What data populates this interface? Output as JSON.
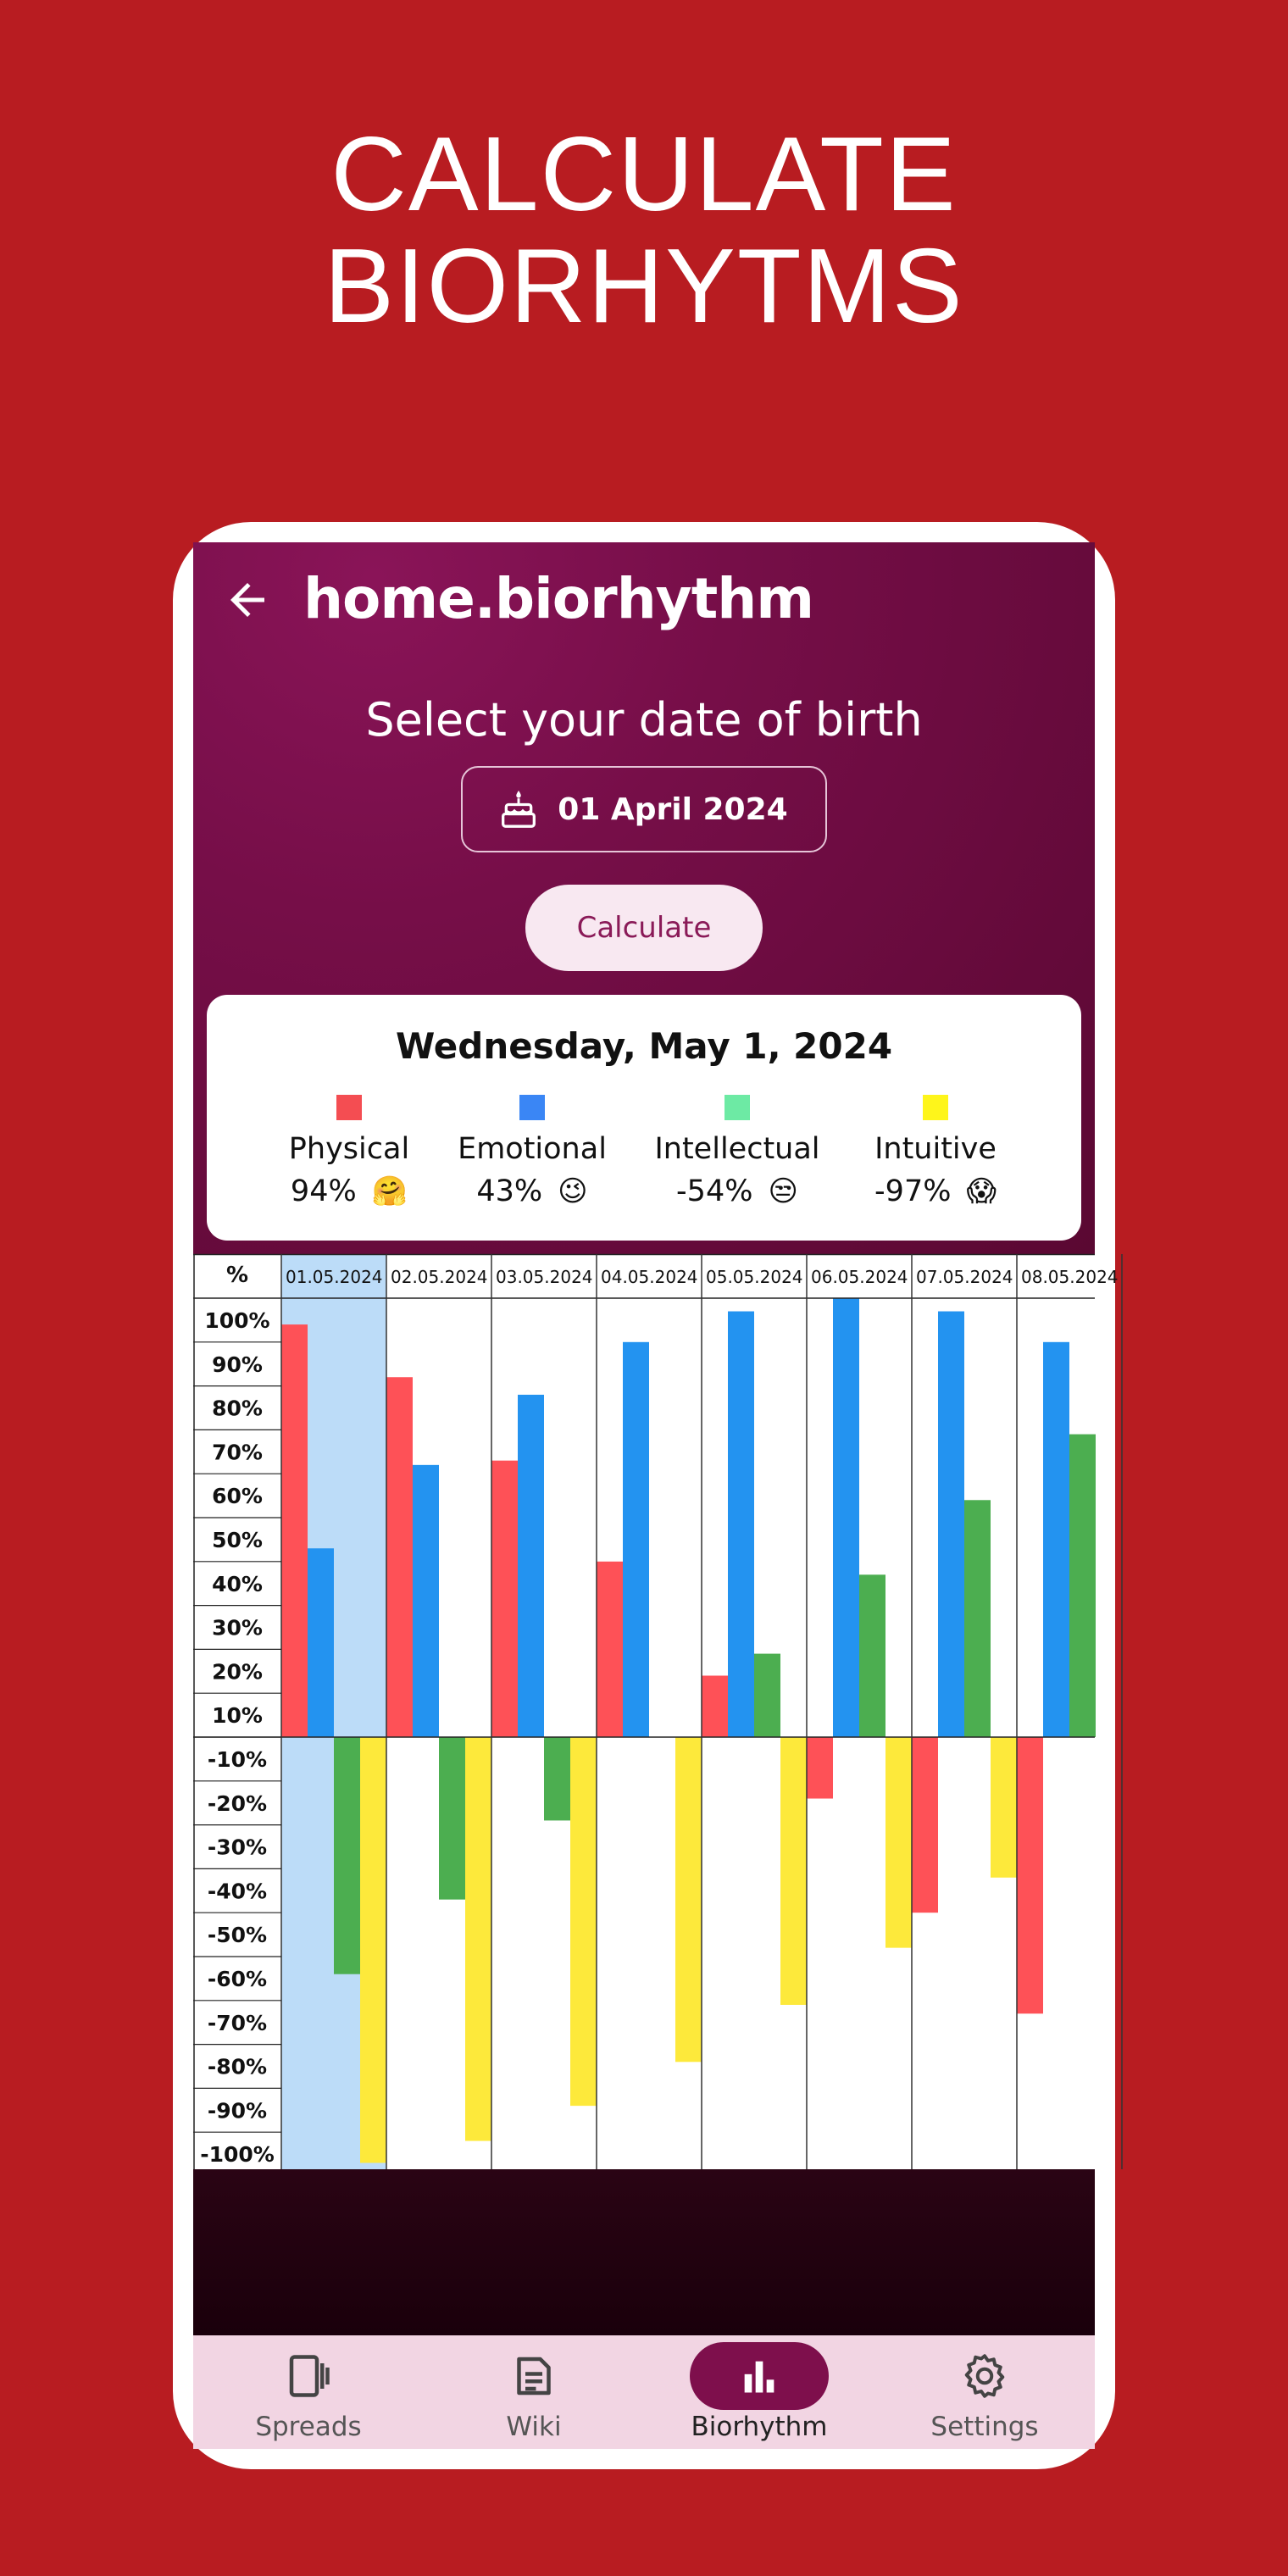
{
  "headline": {
    "line1": "CALCULATE",
    "line2": "BIORHYTMS"
  },
  "appbar": {
    "title": "home.biorhythm"
  },
  "form": {
    "label": "Select your date of birth",
    "date_value": "01 April 2024",
    "calculate_label": "Calculate"
  },
  "summary": {
    "date": "Wednesday, May 1, 2024",
    "items": [
      {
        "name": "Physical",
        "value": "94%",
        "emoji": "🤗",
        "color": "#f44d52"
      },
      {
        "name": "Emotional",
        "value": "43%",
        "emoji": "😉",
        "color": "#3a86f5"
      },
      {
        "name": "Intellectual",
        "value": "-54%",
        "emoji": "😒",
        "color": "#6deaa4"
      },
      {
        "name": "Intuitive",
        "value": "-97%",
        "emoji": "😱",
        "color": "#fef51b"
      }
    ]
  },
  "chart_data": {
    "type": "bar",
    "corner_label": "%",
    "y_ticks": [
      "100%",
      "90%",
      "80%",
      "70%",
      "60%",
      "50%",
      "40%",
      "30%",
      "20%",
      "10%",
      "-10%",
      "-20%",
      "-30%",
      "-40%",
      "-50%",
      "-60%",
      "-70%",
      "-80%",
      "-90%",
      "-100%"
    ],
    "ylim": [
      -100,
      100
    ],
    "categories": [
      "01.05.2024",
      "02.05.2024",
      "03.05.2024",
      "04.05.2024",
      "05.05.2024",
      "06.05.2024",
      "07.05.2024",
      "08.05.2024"
    ],
    "selected_category": "01.05.2024",
    "series": [
      {
        "name": "Physical",
        "color": "#fe5157",
        "values": [
          94,
          82,
          63,
          40,
          14,
          -14,
          -40,
          -63
        ]
      },
      {
        "name": "Emotional",
        "color": "#2393f0",
        "values": [
          43,
          62,
          78,
          90,
          97,
          100,
          97,
          90
        ]
      },
      {
        "name": "Intellectual",
        "color": "#4cae50",
        "values": [
          -54,
          -37,
          -19,
          0,
          19,
          37,
          54,
          69
        ]
      },
      {
        "name": "Intuitive",
        "color": "#fde93b",
        "values": [
          -97,
          -92,
          -84,
          -74,
          -61,
          -48,
          -32,
          0
        ]
      }
    ]
  },
  "nav": {
    "items": [
      {
        "label": "Spreads",
        "icon": "tablet-icon",
        "active": false
      },
      {
        "label": "Wiki",
        "icon": "article-icon",
        "active": false
      },
      {
        "label": "Biorhythm",
        "icon": "bar-chart-icon",
        "active": true
      },
      {
        "label": "Settings",
        "icon": "gear-icon",
        "active": false
      }
    ]
  }
}
